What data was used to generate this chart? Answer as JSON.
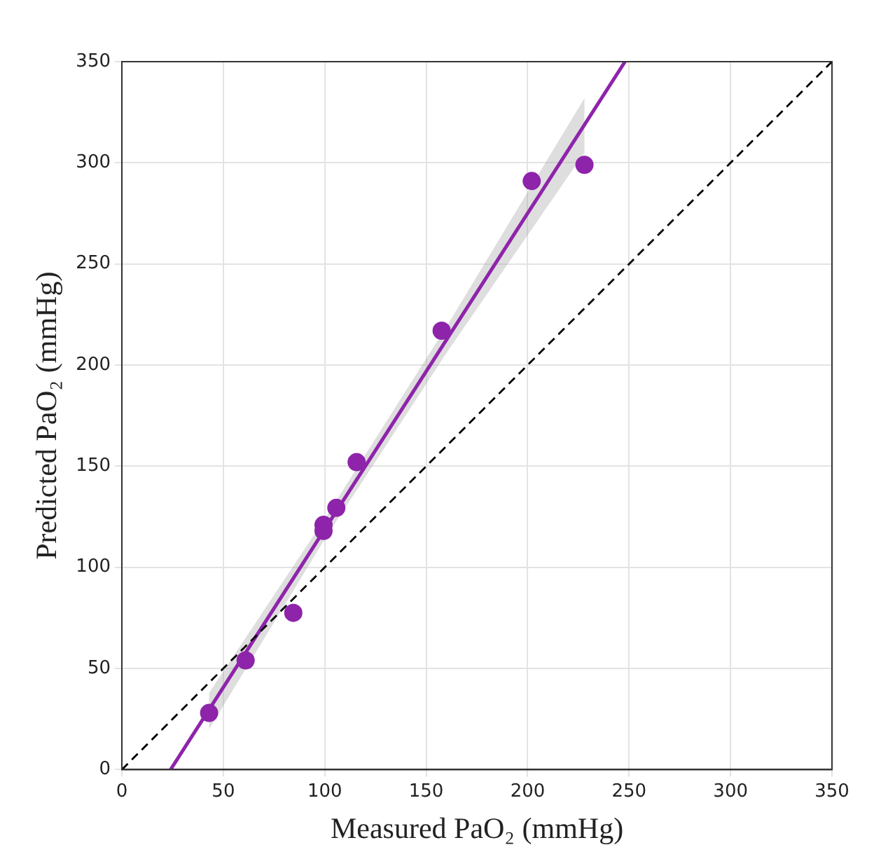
{
  "chart_data": {
    "type": "scatter",
    "xlabel": "Measured PaO₂ (mmHg)",
    "ylabel": "Predicted PaO₂ (mmHg)",
    "xlim": [
      0,
      350
    ],
    "ylim": [
      0,
      350
    ],
    "xticks": [
      0,
      50,
      100,
      150,
      200,
      250,
      300,
      350
    ],
    "yticks": [
      0,
      50,
      100,
      150,
      200,
      250,
      300,
      350
    ],
    "grid": true,
    "legend": false,
    "series": [
      {
        "type": "line",
        "color": "#000000",
        "line_style": "dashed",
        "marker": "none",
        "x": [
          0,
          350
        ],
        "values": [
          0,
          350
        ]
      },
      {
        "type": "line",
        "color": "#8e24aa",
        "line_style": "solid",
        "marker": "none",
        "x": [
          24,
          43,
          100,
          160,
          228,
          248
        ],
        "values": [
          0,
          29.7,
          118.8,
          212.5,
          318.8,
          350
        ],
        "lower": [
          null,
          20,
          114,
          206,
          305,
          null
        ],
        "upper": [
          null,
          38,
          124,
          219,
          332,
          null
        ]
      },
      {
        "color": "#8e24aa",
        "marker": "circle",
        "x": [
          43,
          61,
          84.5,
          99.4,
          99.4,
          105.7,
          115.7,
          157.6,
          202,
          228
        ],
        "values": [
          28,
          54,
          77.5,
          121,
          118,
          129.4,
          152,
          217,
          291,
          299
        ]
      }
    ]
  }
}
